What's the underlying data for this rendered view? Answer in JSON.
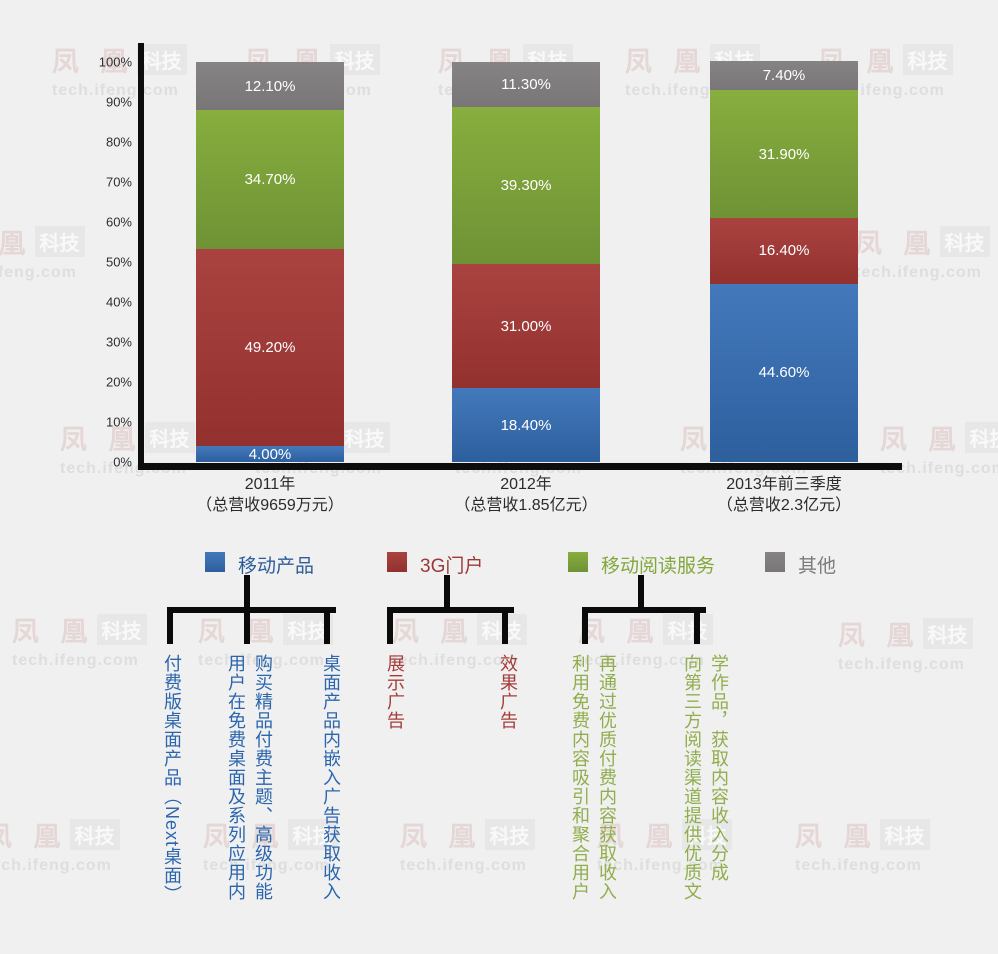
{
  "watermark": {
    "brand": "凤 凰",
    "badge": "科技",
    "url": "tech.ifeng.com",
    "positions": [
      [
        52,
        40
      ],
      [
        245,
        40
      ],
      [
        438,
        40
      ],
      [
        625,
        40
      ],
      [
        818,
        40
      ],
      [
        -50,
        222
      ],
      [
        855,
        222
      ],
      [
        60,
        418
      ],
      [
        255,
        418
      ],
      [
        455,
        418
      ],
      [
        680,
        418
      ],
      [
        880,
        418
      ],
      [
        12,
        610
      ],
      [
        198,
        610
      ],
      [
        392,
        610
      ],
      [
        578,
        610
      ],
      [
        838,
        614
      ],
      [
        -15,
        815
      ],
      [
        203,
        815
      ],
      [
        400,
        815
      ],
      [
        597,
        815
      ],
      [
        795,
        815
      ]
    ]
  },
  "chart_data": {
    "type": "bar",
    "stacked": true,
    "unit": "percent",
    "grid": false,
    "legend_position": "bottom",
    "categories": [
      {
        "line1": "2011年",
        "line2": "（总营收9659万元）"
      },
      {
        "line1": "2012年",
        "line2": "（总营收1.85亿元）"
      },
      {
        "line1": "2013年前三季度",
        "line2": "（总营收2.3亿元）"
      }
    ],
    "series": [
      {
        "name": "移动产品",
        "values": [
          4.0,
          18.4,
          44.6
        ],
        "labels": [
          "4.00%",
          "18.40%",
          "44.60%"
        ],
        "color_top": "#4379bc",
        "color_bottom": "#2d5f9d",
        "legend_text_color": "#2d5d99"
      },
      {
        "name": "3G门户",
        "values": [
          49.2,
          31.0,
          16.4
        ],
        "labels": [
          "49.20%",
          "31.00%",
          "16.40%"
        ],
        "color_top": "#a94340",
        "color_bottom": "#93312f",
        "legend_text_color": "#9c3836"
      },
      {
        "name": "移动阅读服务",
        "values": [
          34.7,
          39.3,
          31.9
        ],
        "labels": [
          "34.70%",
          "39.30%",
          "31.90%"
        ],
        "color_top": "#87ae3e",
        "color_bottom": "#6f9235",
        "legend_text_color": "#83a73d"
      },
      {
        "name": "其他",
        "values": [
          12.1,
          11.3,
          7.4
        ],
        "labels": [
          "12.10%",
          "11.30%",
          "7.40%"
        ],
        "color_top": "#868384",
        "color_bottom": "#797677",
        "legend_text_color": "#7b7b7b"
      }
    ],
    "y_axis": {
      "min": 0,
      "max": 100,
      "tick_step": 10,
      "tick_labels": [
        "0%",
        "10%",
        "20%",
        "30%",
        "40%",
        "50%",
        "60%",
        "70%",
        "80%",
        "90%",
        "100%"
      ]
    }
  },
  "breakdown": [
    {
      "series": "移动产品",
      "text_color": "#2b66ad",
      "items": [
        "付费版桌面产品（Next桌面）",
        "用户在免费桌面及系列应用内\n购买精品付费主题、高级功能",
        "桌面产品内嵌入广告获取收入"
      ]
    },
    {
      "series": "3G门户",
      "text_color": "#a63c3a",
      "items": [
        "展示广告",
        "效果广告"
      ]
    },
    {
      "series": "移动阅读服务",
      "text_color": "#90ae4b",
      "items": [
        "利用免费内容吸引和聚合用户\n再通过优质付费内容获取收入",
        "向第三方阅读渠道提供优质文\n学作品，获取内容收入分成"
      ]
    }
  ]
}
